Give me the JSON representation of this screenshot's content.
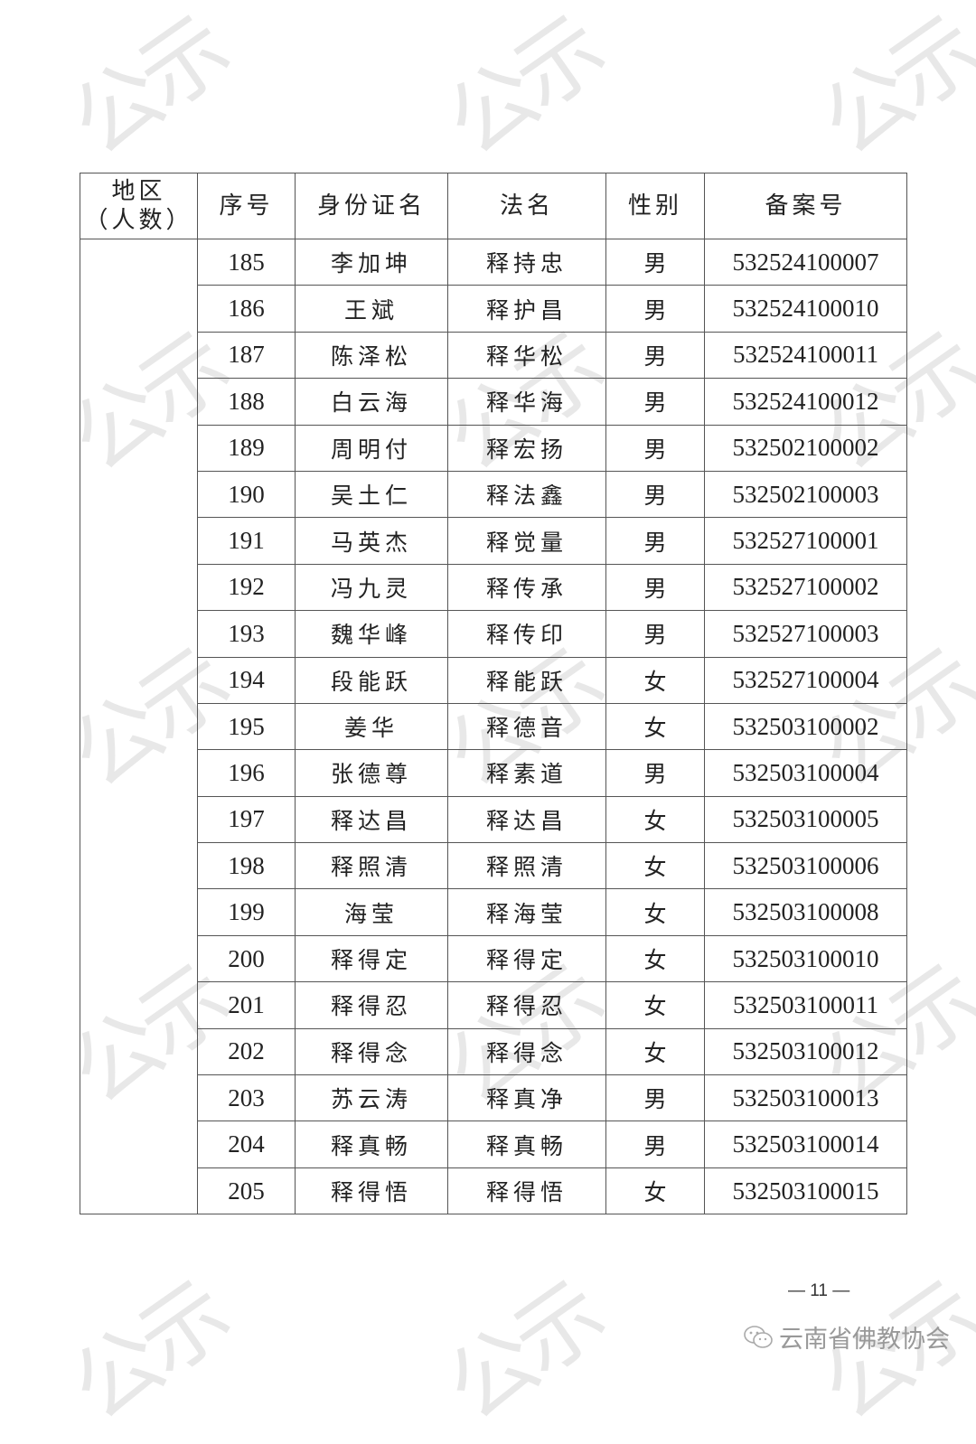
{
  "watermark_text": "公示",
  "table": {
    "headers": {
      "region": "地区",
      "region_sub": "（人数）",
      "seq": "序号",
      "id_name": "身份证名",
      "dharma_name": "法名",
      "gender": "性别",
      "record_no": "备案号"
    },
    "region_value": "",
    "rows": [
      {
        "seq": "185",
        "id_name": "李加坤",
        "dharma_name": "释持忠",
        "gender": "男",
        "record_no": "532524100007"
      },
      {
        "seq": "186",
        "id_name": "王斌",
        "dharma_name": "释护昌",
        "gender": "男",
        "record_no": "532524100010"
      },
      {
        "seq": "187",
        "id_name": "陈泽松",
        "dharma_name": "释华松",
        "gender": "男",
        "record_no": "532524100011"
      },
      {
        "seq": "188",
        "id_name": "白云海",
        "dharma_name": "释华海",
        "gender": "男",
        "record_no": "532524100012"
      },
      {
        "seq": "189",
        "id_name": "周明付",
        "dharma_name": "释宏扬",
        "gender": "男",
        "record_no": "532502100002"
      },
      {
        "seq": "190",
        "id_name": "吴土仁",
        "dharma_name": "释法鑫",
        "gender": "男",
        "record_no": "532502100003"
      },
      {
        "seq": "191",
        "id_name": "马英杰",
        "dharma_name": "释觉量",
        "gender": "男",
        "record_no": "532527100001"
      },
      {
        "seq": "192",
        "id_name": "冯九灵",
        "dharma_name": "释传承",
        "gender": "男",
        "record_no": "532527100002"
      },
      {
        "seq": "193",
        "id_name": "魏华峰",
        "dharma_name": "释传印",
        "gender": "男",
        "record_no": "532527100003"
      },
      {
        "seq": "194",
        "id_name": "段能跃",
        "dharma_name": "释能跃",
        "gender": "女",
        "record_no": "532527100004"
      },
      {
        "seq": "195",
        "id_name": "姜华",
        "dharma_name": "释德音",
        "gender": "女",
        "record_no": "532503100002"
      },
      {
        "seq": "196",
        "id_name": "张德尊",
        "dharma_name": "释素道",
        "gender": "男",
        "record_no": "532503100004"
      },
      {
        "seq": "197",
        "id_name": "释达昌",
        "dharma_name": "释达昌",
        "gender": "女",
        "record_no": "532503100005"
      },
      {
        "seq": "198",
        "id_name": "释照清",
        "dharma_name": "释照清",
        "gender": "女",
        "record_no": "532503100006"
      },
      {
        "seq": "199",
        "id_name": "海莹",
        "dharma_name": "释海莹",
        "gender": "女",
        "record_no": "532503100008"
      },
      {
        "seq": "200",
        "id_name": "释得定",
        "dharma_name": "释得定",
        "gender": "女",
        "record_no": "532503100010"
      },
      {
        "seq": "201",
        "id_name": "释得忍",
        "dharma_name": "释得忍",
        "gender": "女",
        "record_no": "532503100011"
      },
      {
        "seq": "202",
        "id_name": "释得念",
        "dharma_name": "释得念",
        "gender": "女",
        "record_no": "532503100012"
      },
      {
        "seq": "203",
        "id_name": "苏云涛",
        "dharma_name": "释真净",
        "gender": "男",
        "record_no": "532503100013"
      },
      {
        "seq": "204",
        "id_name": "释真畅",
        "dharma_name": "释真畅",
        "gender": "男",
        "record_no": "532503100014"
      },
      {
        "seq": "205",
        "id_name": "释得悟",
        "dharma_name": "释得悟",
        "gender": "女",
        "record_no": "532503100015"
      }
    ]
  },
  "footer": {
    "page_number": "— 11 —",
    "brand_icon": "wechat-icon",
    "brand_name": "云南省佛教协会"
  }
}
